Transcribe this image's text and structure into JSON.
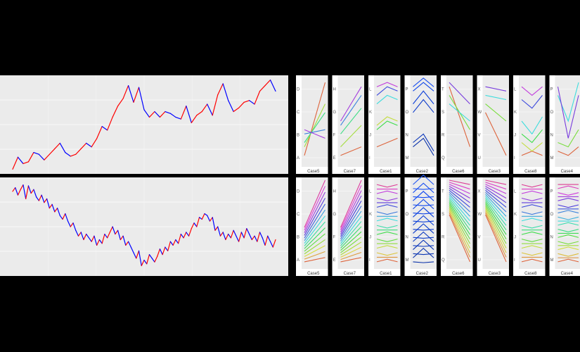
{
  "chart_data": [
    {
      "type": "line",
      "title": "",
      "xlabel": "",
      "ylabel": "",
      "grid": true,
      "legend": "none",
      "colors": {
        "up": "#ff0000",
        "down": "#0000ff"
      },
      "ylim": [
        0,
        100
      ],
      "x": [
        0,
        2,
        4,
        6,
        8,
        10,
        12,
        14,
        16,
        18,
        20,
        22,
        24,
        26,
        28,
        30,
        32,
        34,
        36,
        38,
        40,
        42,
        44,
        46,
        48,
        50,
        52,
        54,
        56,
        58,
        60,
        62,
        64,
        66,
        68,
        70,
        72,
        74,
        76,
        78,
        80,
        82,
        84,
        86,
        88,
        90,
        92,
        94,
        96,
        98,
        100
      ],
      "values": [
        2,
        15,
        8,
        10,
        20,
        18,
        12,
        18,
        24,
        30,
        20,
        16,
        18,
        24,
        30,
        26,
        35,
        48,
        44,
        58,
        70,
        78,
        92,
        74,
        90,
        66,
        58,
        64,
        58,
        64,
        62,
        58,
        56,
        70,
        52,
        60,
        64,
        72,
        60,
        82,
        94,
        76,
        64,
        68,
        74,
        76,
        72,
        86,
        92,
        98,
        86
      ]
    },
    {
      "type": "line",
      "title": "",
      "xlabel": "",
      "ylabel": "",
      "grid": true,
      "legend": "none",
      "colors": {
        "up": "#ff0000",
        "down": "#0000ff"
      },
      "ylim": [
        0,
        100
      ],
      "x": [
        0,
        1,
        2,
        3,
        4,
        5,
        6,
        7,
        8,
        9,
        10,
        11,
        12,
        13,
        14,
        15,
        16,
        17,
        18,
        19,
        20,
        21,
        22,
        23,
        24,
        25,
        26,
        27,
        28,
        29,
        30,
        31,
        32,
        33,
        34,
        35,
        36,
        37,
        38,
        39,
        40,
        41,
        42,
        43,
        44,
        45,
        46,
        47,
        48,
        49,
        50,
        51,
        52,
        53,
        54,
        55,
        56,
        57,
        58,
        59,
        60,
        61,
        62,
        63,
        64,
        65,
        66,
        67,
        68,
        69,
        70,
        71,
        72,
        73,
        74,
        75,
        76,
        77,
        78,
        79,
        80,
        81,
        82,
        83,
        84,
        85,
        86,
        87,
        88,
        89,
        90,
        91,
        92,
        93,
        94,
        95,
        96,
        97,
        98,
        99,
        100
      ],
      "values": [
        88,
        92,
        84,
        90,
        95,
        80,
        94,
        86,
        90,
        82,
        78,
        84,
        76,
        80,
        70,
        74,
        66,
        70,
        62,
        58,
        64,
        56,
        50,
        54,
        46,
        40,
        44,
        36,
        42,
        38,
        34,
        40,
        30,
        36,
        32,
        42,
        38,
        44,
        50,
        42,
        46,
        36,
        40,
        30,
        34,
        28,
        22,
        16,
        24,
        8,
        14,
        10,
        20,
        16,
        12,
        18,
        26,
        20,
        28,
        24,
        34,
        30,
        36,
        32,
        42,
        38,
        44,
        40,
        48,
        54,
        50,
        60,
        58,
        64,
        62,
        56,
        60,
        46,
        50,
        40,
        44,
        36,
        42,
        38,
        46,
        40,
        34,
        44,
        38,
        48,
        42,
        36,
        40,
        34,
        44,
        38,
        30,
        40,
        34,
        28,
        36
      ]
    },
    {
      "type": "line",
      "title": "",
      "xlabel": "",
      "ylabel": "",
      "legend": "none",
      "facets": [
        {
          "name": "Case5",
          "palette": "hue",
          "ticks": [
            "A",
            "B",
            "C",
            "D"
          ],
          "series": [
            {
              "values": [
                1,
                9.5
              ]
            },
            {
              "values": [
                2,
                7
              ]
            },
            {
              "values": [
                2.5,
                6
              ]
            },
            {
              "values": [
                3.5,
                4
              ]
            },
            {
              "values": [
                4,
                3
              ]
            }
          ]
        },
        {
          "name": "Case7",
          "palette": "hue",
          "ticks": [
            "E",
            "F",
            "G",
            "H"
          ],
          "series": [
            {
              "values": [
                1,
                2
              ]
            },
            {
              "values": [
                2,
                4.5
              ]
            },
            {
              "values": [
                3.5,
                6.5
              ]
            },
            {
              "values": [
                4.5,
                8
              ]
            },
            {
              "values": [
                5,
                9
              ]
            }
          ]
        },
        {
          "name": "Case1",
          "palette": "hue",
          "ticks": [
            "I",
            "J",
            "K",
            "L"
          ],
          "series": [
            {
              "values": [
                2,
                3
              ]
            },
            {
              "values": [
                4.5,
                5.5,
                5
              ]
            },
            {
              "values": [
                4,
                5,
                4.5
              ]
            },
            {
              "values": [
                7,
                8,
                7.5
              ]
            },
            {
              "values": [
                8,
                9,
                8.5
              ]
            },
            {
              "values": [
                9,
                9.5,
                9
              ]
            }
          ]
        },
        {
          "name": "Case2",
          "palette": "blue",
          "ticks": [
            "M",
            "N",
            "O",
            "P"
          ],
          "series": [
            {
              "values": [
                2,
                3,
                1
              ]
            },
            {
              "values": [
                2.5,
                3.5,
                1.5
              ]
            },
            {
              "values": [
                6,
                7.5,
                6
              ]
            },
            {
              "values": [
                7,
                8.5,
                7
              ]
            },
            {
              "values": [
                8.5,
                9.5,
                8.5
              ]
            },
            {
              "values": [
                9,
                10,
                9
              ]
            }
          ]
        },
        {
          "name": "Case6",
          "palette": "hue",
          "ticks": [
            "Q",
            "R",
            "S",
            "T"
          ],
          "series": [
            {
              "values": [
                9,
                2
              ]
            },
            {
              "values": [
                8,
                4
              ]
            },
            {
              "values": [
                7,
                5
              ]
            },
            {
              "values": [
                9.5,
                7
              ]
            }
          ]
        },
        {
          "name": "Case3",
          "palette": "hue",
          "ticks": [
            "U",
            "V",
            "W",
            "X"
          ],
          "series": [
            {
              "values": [
                6,
                1
              ]
            },
            {
              "values": [
                7,
                5
              ]
            },
            {
              "values": [
                8,
                7.5
              ]
            },
            {
              "values": [
                9,
                8.5
              ]
            }
          ]
        },
        {
          "name": "Case8",
          "palette": "hue",
          "ticks": [
            "I",
            "J",
            "K",
            "L"
          ],
          "series": [
            {
              "values": [
                1,
                1.5,
                1
              ]
            },
            {
              "values": [
                2.5,
                1.5,
                2.5
              ]
            },
            {
              "values": [
                3.5,
                2.5,
                4
              ]
            },
            {
              "values": [
                5,
                3.5,
                5.5
              ]
            },
            {
              "values": [
                7.5,
                6.5,
                8
              ]
            },
            {
              "values": [
                9,
                8,
                9
              ]
            }
          ]
        },
        {
          "name": "Case4",
          "palette": "hue",
          "ticks": [
            "M",
            "N",
            "O",
            "P"
          ],
          "series": [
            {
              "values": [
                1.5,
                1,
                2
              ]
            },
            {
              "values": [
                2.5,
                2,
                4
              ]
            },
            {
              "values": [
                8,
                5,
                9.5
              ]
            },
            {
              "values": [
                9,
                3,
                8
              ]
            }
          ]
        }
      ]
    },
    {
      "type": "line",
      "title": "",
      "xlabel": "",
      "ylabel": "",
      "legend": "none",
      "facets": [
        {
          "name": "Case5",
          "palette": "hue",
          "pattern": "rise",
          "count": 14,
          "ticks": [
            "A",
            "B",
            "C",
            "D"
          ]
        },
        {
          "name": "Case7",
          "palette": "hue",
          "pattern": "rise",
          "count": 16,
          "ticks": [
            "E",
            "F",
            "G",
            "H"
          ]
        },
        {
          "name": "Case1",
          "palette": "hue",
          "pattern": "flat",
          "count": 18,
          "ticks": [
            "I",
            "J",
            "K",
            "L"
          ]
        },
        {
          "name": "Case2",
          "palette": "blue",
          "pattern": "zigzag",
          "count": 20,
          "ticks": [
            "M",
            "N",
            "O",
            "P"
          ]
        },
        {
          "name": "Case6",
          "palette": "hue",
          "pattern": "fall",
          "count": 18,
          "ticks": [
            "Q",
            "R",
            "S",
            "T"
          ]
        },
        {
          "name": "Case3",
          "palette": "hue",
          "pattern": "fall",
          "count": 18,
          "ticks": [
            "U",
            "V",
            "W",
            "X"
          ]
        },
        {
          "name": "Case8",
          "palette": "hue",
          "pattern": "flat",
          "count": 18,
          "ticks": [
            "I",
            "J",
            "K",
            "L"
          ]
        },
        {
          "name": "Case4",
          "palette": "hue",
          "pattern": "flat",
          "count": 20,
          "ticks": [
            "M",
            "N",
            "O",
            "P"
          ]
        }
      ]
    }
  ]
}
